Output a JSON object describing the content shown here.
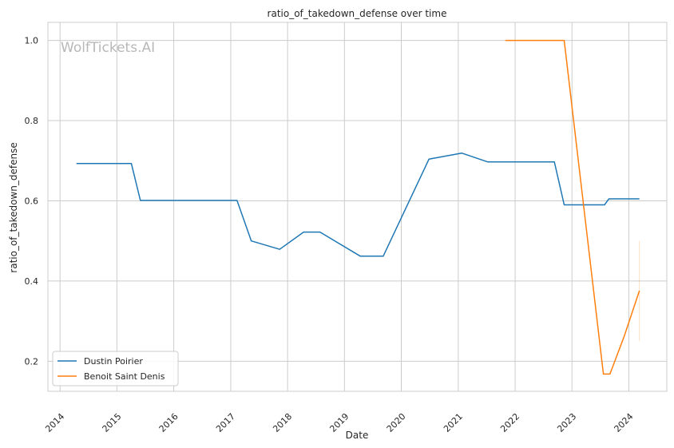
{
  "watermark": "WolfTickets.AI",
  "chart_data": {
    "type": "line",
    "title": "ratio_of_takedown_defense over time",
    "xlabel": "Date",
    "ylabel": "ratio_of_takedown_defense",
    "x_ticks": [
      "2014",
      "2015",
      "2016",
      "2017",
      "2018",
      "2019",
      "2020",
      "2021",
      "2022",
      "2023",
      "2024"
    ],
    "y_ticks": [
      "0.2",
      "0.4",
      "0.6",
      "0.8",
      "1.0"
    ],
    "xlim": [
      "2013-10-15",
      "2024-09-01"
    ],
    "ylim": [
      0.125,
      1.045
    ],
    "grid": true,
    "legend_position": "lower-left",
    "series": [
      {
        "name": "Dustin Poirier",
        "color": "#1f77b4",
        "points": [
          [
            "2014-04-16",
            0.693
          ],
          [
            "2015-04-04",
            0.693
          ],
          [
            "2015-06-01",
            0.601
          ],
          [
            "2017-02-10",
            0.601
          ],
          [
            "2017-05-13",
            0.5
          ],
          [
            "2017-11-11",
            0.479
          ],
          [
            "2018-04-14",
            0.522
          ],
          [
            "2018-07-28",
            0.522
          ],
          [
            "2019-04-13",
            0.462
          ],
          [
            "2019-09-07",
            0.462
          ],
          [
            "2020-06-27",
            0.704
          ],
          [
            "2021-01-23",
            0.719
          ],
          [
            "2021-07-10",
            0.697
          ],
          [
            "2022-09-10",
            0.697
          ],
          [
            "2022-11-12",
            0.59
          ],
          [
            "2023-07-29",
            0.59
          ],
          [
            "2023-08-26",
            0.605
          ],
          [
            "2024-03-09",
            0.605
          ]
        ]
      },
      {
        "name": "Benoit Saint Denis",
        "color": "#ff7f0e",
        "points": [
          [
            "2021-10-30",
            1.0
          ],
          [
            "2022-11-12",
            1.0
          ],
          [
            "2023-07-22",
            0.168
          ],
          [
            "2023-09-02",
            0.168
          ],
          [
            "2023-12-02",
            0.262
          ],
          [
            "2024-03-09",
            0.376
          ]
        ]
      }
    ],
    "annotations": [
      {
        "type": "vertical-error-line",
        "x": "2024-03-09",
        "y_range": [
          0.25,
          0.5
        ],
        "color": "#ff7f0e"
      }
    ]
  }
}
